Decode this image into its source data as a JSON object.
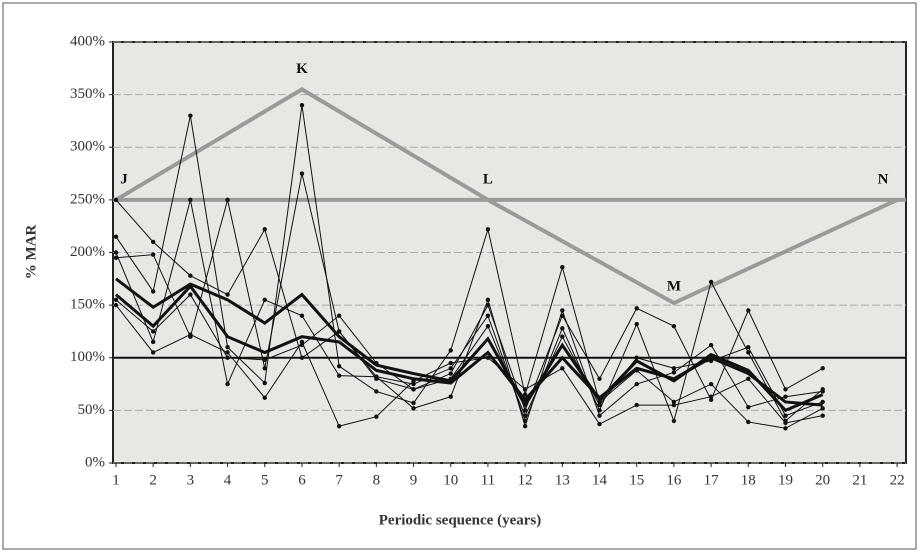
{
  "chart_data": {
    "type": "line",
    "ylabel": "% MAR",
    "xlabel": "Periodic sequence (years)",
    "x": [
      1,
      2,
      3,
      4,
      5,
      6,
      7,
      8,
      9,
      10,
      11,
      12,
      13,
      14,
      15,
      16,
      17,
      18,
      19,
      20
    ],
    "series": [
      {
        "color": "#111111",
        "width": 3,
        "values": [
          175,
          148,
          170,
          155,
          133,
          160,
          120,
          93,
          85,
          78,
          118,
          55,
          112,
          60,
          97,
          78,
          103,
          88,
          50,
          65
        ]
      },
      {
        "color": "#111111",
        "width": 3,
        "values": [
          160,
          130,
          168,
          120,
          105,
          120,
          115,
          88,
          80,
          76,
          105,
          60,
          100,
          62,
          90,
          80,
          100,
          85,
          58,
          55
        ]
      },
      {
        "color": "#111111",
        "width": 1,
        "values": [
          215,
          163,
          330,
          110,
          76,
          340,
          92,
          68,
          57,
          107,
          222,
          65,
          186,
          58,
          88,
          58,
          75,
          39,
          33,
          52
        ]
      },
      {
        "color": "#111111",
        "width": 1,
        "values": [
          250,
          210,
          178,
          160,
          222,
          100,
          125,
          80,
          70,
          85,
          150,
          50,
          140,
          80,
          147,
          130,
          60,
          145,
          70,
          90
        ]
      },
      {
        "color": "#111111",
        "width": 1,
        "values": [
          195,
          198,
          120,
          250,
          90,
          275,
          125,
          82,
          75,
          90,
          140,
          40,
          128,
          50,
          132,
          40,
          172,
          105,
          40,
          70
        ]
      },
      {
        "color": "#111111",
        "width": 1,
        "values": [
          150,
          105,
          122,
          105,
          62,
          115,
          35,
          44,
          78,
          95,
          100,
          70,
          90,
          37,
          55,
          55,
          63,
          80,
          38,
          45
        ]
      },
      {
        "color": "#111111",
        "width": 1,
        "values": [
          200,
          115,
          250,
          75,
          155,
          140,
          83,
          82,
          52,
          63,
          155,
          35,
          145,
          45,
          75,
          86,
          112,
          53,
          63,
          68
        ]
      },
      {
        "color": "#111111",
        "width": 1,
        "values": [
          155,
          125,
          160,
          100,
          98,
          112,
          140,
          95,
          70,
          80,
          130,
          45,
          120,
          55,
          100,
          90,
          97,
          110,
          45,
          58
        ]
      }
    ],
    "guide": {
      "x": [
        1,
        6,
        11,
        16,
        22
      ],
      "values": [
        250,
        355,
        250,
        152,
        250
      ],
      "labels": [
        "J",
        "K",
        "L",
        "M",
        "N"
      ],
      "color": "#9a9a9a"
    },
    "reference_lines": [
      {
        "value": 250,
        "color": "#9a9a9a"
      },
      {
        "value": 100,
        "color": "#111111"
      }
    ],
    "xlim": [
      0.92,
      22.24
    ],
    "ylim": [
      0,
      400
    ],
    "xticks": [
      1,
      2,
      3,
      4,
      5,
      6,
      7,
      8,
      9,
      10,
      11,
      12,
      13,
      14,
      15,
      16,
      17,
      18,
      19,
      20,
      21,
      22
    ],
    "yticks": [
      {
        "value": 0,
        "label": "0%"
      },
      {
        "value": 50,
        "label": "50%"
      },
      {
        "value": 100,
        "label": "100%"
      },
      {
        "value": 150,
        "label": "150%"
      },
      {
        "value": 200,
        "label": "200%"
      },
      {
        "value": 250,
        "label": "250%"
      },
      {
        "value": 300,
        "label": "300%"
      },
      {
        "value": 350,
        "label": "350%"
      },
      {
        "value": 400,
        "label": "400%"
      }
    ],
    "grid": true
  }
}
